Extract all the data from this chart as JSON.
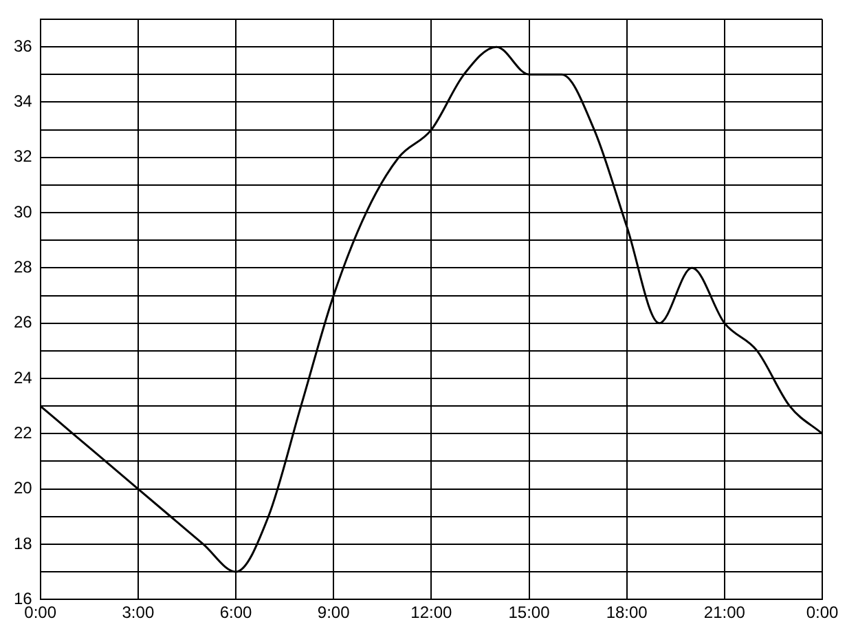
{
  "chart_data": {
    "type": "line",
    "x": [
      0,
      1,
      2,
      3,
      4,
      5,
      6,
      7,
      8,
      9,
      10,
      11,
      12,
      13,
      14,
      15,
      16,
      17,
      18,
      19,
      20,
      21,
      22,
      23,
      24
    ],
    "values": [
      23,
      22,
      21,
      20,
      19,
      18,
      17,
      19,
      23,
      27,
      30,
      32,
      33,
      35,
      36,
      35,
      35,
      33,
      29.5,
      26,
      28,
      26,
      25,
      23,
      22
    ],
    "color": "#000000",
    "xlim": [
      0,
      24
    ],
    "xticks": [
      {
        "value": 0,
        "label": "0:00"
      },
      {
        "value": 3,
        "label": "3:00"
      },
      {
        "value": 6,
        "label": "6:00"
      },
      {
        "value": 9,
        "label": "9:00"
      },
      {
        "value": 12,
        "label": "12:00"
      },
      {
        "value": 15,
        "label": "15:00"
      },
      {
        "value": 18,
        "label": "18:00"
      },
      {
        "value": 21,
        "label": "21:00"
      },
      {
        "value": 24,
        "label": "0:00"
      }
    ],
    "ylim": [
      16,
      37
    ],
    "yticks": [
      16,
      {
        "value": 17,
        "label": null
      },
      18,
      {
        "value": 19,
        "label": null
      },
      20,
      {
        "value": 21,
        "label": null
      },
      22,
      {
        "value": 23,
        "label": null
      },
      24,
      {
        "value": 25,
        "label": null
      },
      26,
      {
        "value": 27,
        "label": null
      },
      28,
      {
        "value": 29,
        "label": null
      },
      30,
      {
        "value": 31,
        "label": null
      },
      32,
      {
        "value": 33,
        "label": null
      },
      34,
      {
        "value": 35,
        "label": null
      },
      36,
      {
        "value": 37,
        "label": null
      }
    ],
    "grid": true,
    "marker": "none",
    "line_style": "solid"
  }
}
